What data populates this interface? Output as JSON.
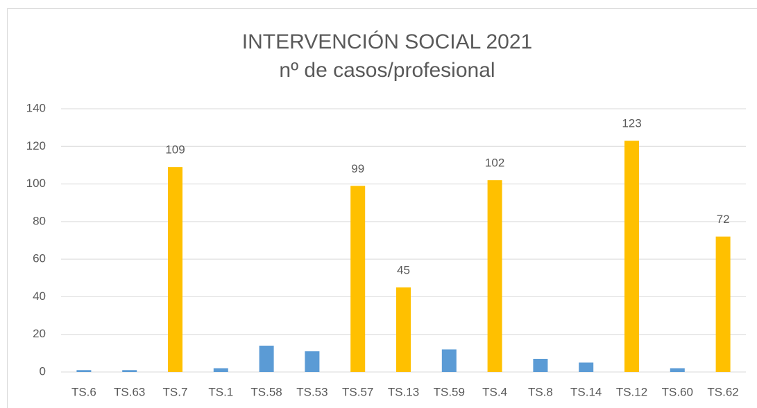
{
  "chart_data": {
    "type": "bar",
    "title": "INTERVENCIÓN SOCIAL 2021",
    "subtitle": "nº de casos/profesional",
    "categories": [
      "TS.6",
      "TS.63",
      "TS.7",
      "TS.1",
      "TS.58",
      "TS.53",
      "TS.57",
      "TS.13",
      "TS.59",
      "TS.4",
      "TS.8",
      "TS.14",
      "TS.12",
      "TS.60",
      "TS.62"
    ],
    "values": [
      1,
      1,
      109,
      2,
      14,
      11,
      99,
      45,
      12,
      102,
      7,
      5,
      123,
      2,
      72
    ],
    "colors": [
      "#5b9bd5",
      "#5b9bd5",
      "#ffc000",
      "#5b9bd5",
      "#5b9bd5",
      "#5b9bd5",
      "#ffc000",
      "#ffc000",
      "#5b9bd5",
      "#ffc000",
      "#5b9bd5",
      "#5b9bd5",
      "#ffc000",
      "#5b9bd5",
      "#ffc000"
    ],
    "data_labels": [
      false,
      false,
      true,
      false,
      false,
      false,
      true,
      true,
      false,
      true,
      false,
      false,
      true,
      false,
      true
    ],
    "ylim": [
      0,
      140
    ],
    "yticks": [
      0,
      20,
      40,
      60,
      80,
      100,
      120,
      140
    ],
    "grid": true
  }
}
